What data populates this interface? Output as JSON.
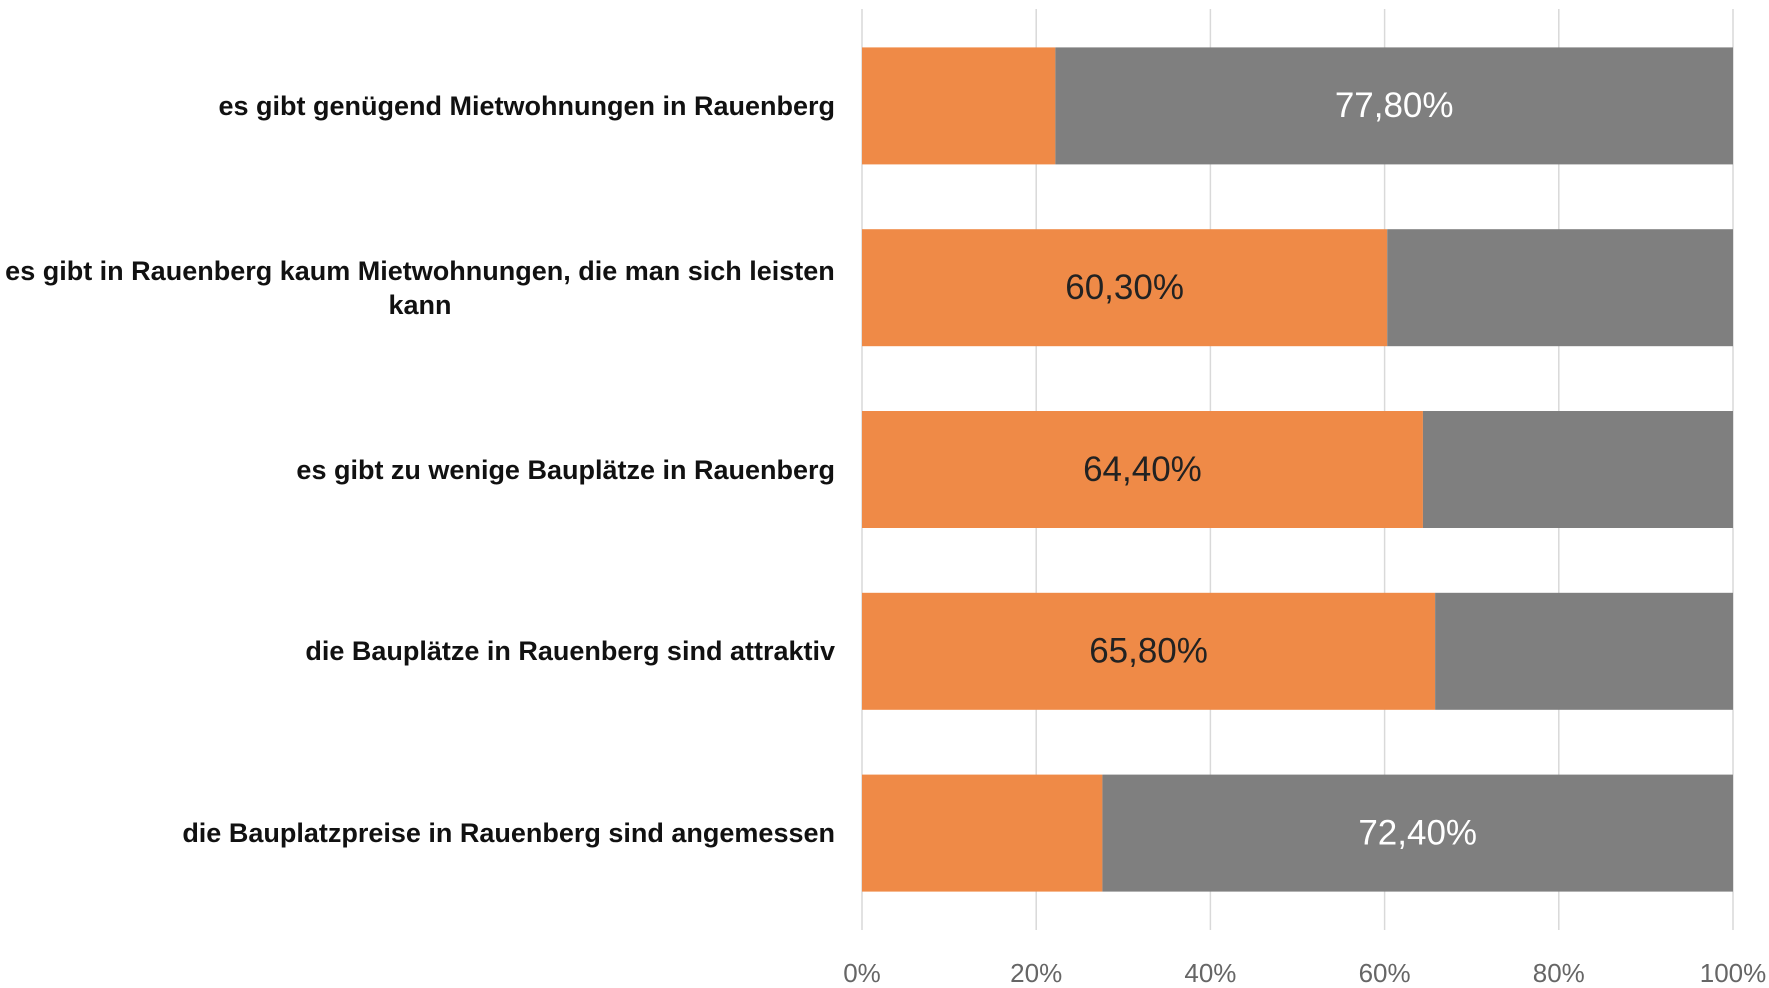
{
  "chart_data": {
    "type": "stacked_barh",
    "categories": [
      "es gibt genügend Mietwohnungen in Rauenberg",
      "es gibt in Rauenberg kaum Mietwohnungen, die man sich leisten kann",
      "es gibt zu wenige Bauplätze in Rauenberg",
      "die Bauplätze in Rauenberg sind attraktiv",
      "die Bauplatzpreise in Rauenberg sind angemessen"
    ],
    "series": [
      {
        "color": "#ef8a47",
        "label_color": "#222222",
        "values": [
          22.2,
          60.3,
          64.4,
          65.8,
          27.6
        ],
        "value_labels": [
          null,
          "60,30%",
          "64,40%",
          "65,80%",
          null
        ]
      },
      {
        "color": "#7f7f7f",
        "label_color": "#ffffff",
        "values": [
          77.8,
          39.7,
          35.6,
          34.2,
          72.4
        ],
        "value_labels": [
          "77,80%",
          null,
          null,
          null,
          "72,40%"
        ]
      }
    ],
    "xlim": [
      0,
      100
    ],
    "xticks": [
      {
        "value": 0,
        "label": "0%"
      },
      {
        "value": 20,
        "label": "20%"
      },
      {
        "value": 40,
        "label": "40%"
      },
      {
        "value": 60,
        "label": "60%"
      },
      {
        "value": 80,
        "label": "80%"
      },
      {
        "value": 100,
        "label": "100%"
      }
    ],
    "grid": true
  }
}
